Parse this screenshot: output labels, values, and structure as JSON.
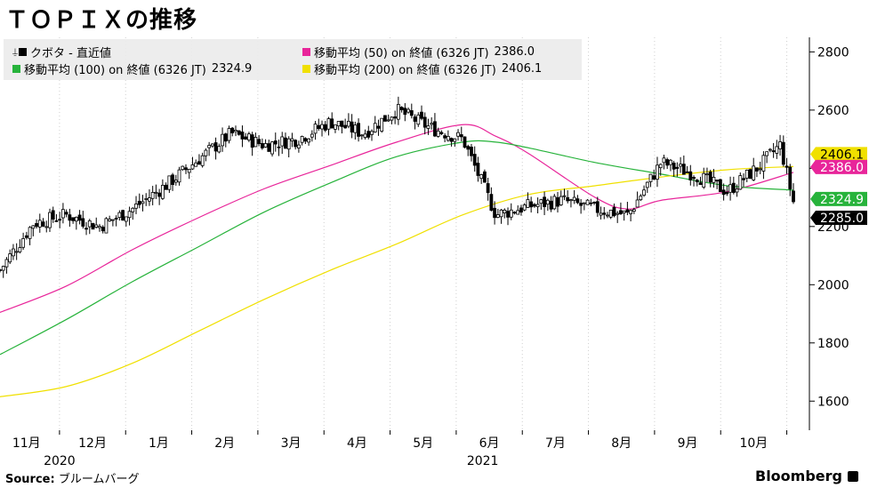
{
  "title": "ＴＯＰＩＸの推移",
  "source_label": "Source:",
  "source_text": "ブルームバーグ",
  "logo": "Bloomberg",
  "legend": {
    "items": [
      {
        "label": "クボタ - 直近値",
        "value": "",
        "color": "#000000"
      },
      {
        "label": "移動平均 (50)  on 終値 (6326 JT)",
        "value": "2386.0",
        "color": "#e8259a"
      },
      {
        "label": "移動平均 (100)  on 終値 (6326 JT)",
        "value": "2324.9",
        "color": "#27b33b"
      },
      {
        "label": "移動平均 (200)  on 終値 (6326 JT)",
        "value": "2406.1",
        "color": "#f0e000"
      }
    ]
  },
  "chart_data": {
    "type": "line",
    "title": "ＴＯＰＩＸの推移",
    "ylim": [
      1500,
      2850
    ],
    "y_ticks": [
      1600,
      1800,
      2000,
      2200,
      2400,
      2600,
      2800
    ],
    "y_tick_labels": [
      "1600",
      "1800",
      "2000",
      "2200",
      "2400",
      "2600",
      "2800"
    ],
    "x_range": [
      0,
      12
    ],
    "month_ticks": [
      {
        "x": 0.4,
        "label": "11月"
      },
      {
        "x": 1.4,
        "label": "12月"
      },
      {
        "x": 2.4,
        "label": "1月"
      },
      {
        "x": 3.4,
        "label": "2月"
      },
      {
        "x": 4.4,
        "label": "3月"
      },
      {
        "x": 5.4,
        "label": "4月"
      },
      {
        "x": 6.4,
        "label": "5月"
      },
      {
        "x": 7.4,
        "label": "6月"
      },
      {
        "x": 8.4,
        "label": "7月"
      },
      {
        "x": 9.4,
        "label": "8月"
      },
      {
        "x": 10.4,
        "label": "9月"
      },
      {
        "x": 11.4,
        "label": "10月"
      }
    ],
    "year_labels": [
      {
        "x": 0.9,
        "label": "2020"
      },
      {
        "x": 7.3,
        "label": "2021"
      }
    ],
    "grid": "vertical-dotted",
    "legend_position": "top-left",
    "series": [
      {
        "name": "クボタ - 直近値",
        "kind": "candlestick",
        "color": "#000000",
        "x": [
          0,
          0.5,
          1,
          1.5,
          2,
          2.5,
          3,
          3.5,
          4,
          4.5,
          5,
          5.5,
          6,
          6.5,
          7,
          7.5,
          8,
          8.5,
          9,
          9.5,
          10,
          10.5,
          11,
          11.5,
          11.8,
          12
        ],
        "y": [
          2050,
          2210,
          2240,
          2200,
          2260,
          2340,
          2430,
          2520,
          2480,
          2500,
          2560,
          2520,
          2600,
          2540,
          2500,
          2240,
          2270,
          2290,
          2260,
          2240,
          2420,
          2380,
          2320,
          2410,
          2480,
          2285
        ]
      },
      {
        "name": "移動平均 (50)",
        "color": "#e8259a",
        "x": [
          0,
          1,
          2,
          3,
          4,
          5,
          6,
          7,
          7.5,
          8,
          9,
          9.5,
          10,
          11,
          12
        ],
        "y": [
          1905,
          1995,
          2120,
          2230,
          2330,
          2410,
          2490,
          2550,
          2510,
          2450,
          2300,
          2260,
          2290,
          2320,
          2386
        ]
      },
      {
        "name": "移動平均 (100)",
        "color": "#27b33b",
        "x": [
          0,
          1,
          2,
          3,
          4,
          5,
          6,
          7,
          7.5,
          8,
          9,
          10,
          11,
          12
        ],
        "y": [
          1760,
          1880,
          2010,
          2130,
          2250,
          2350,
          2440,
          2490,
          2490,
          2470,
          2420,
          2380,
          2340,
          2325
        ]
      },
      {
        "name": "移動平均 (200)",
        "color": "#f0e000",
        "x": [
          0,
          1,
          2,
          3,
          4,
          5,
          6,
          7,
          8,
          9,
          10,
          11,
          12
        ],
        "y": [
          1615,
          1650,
          1730,
          1840,
          1950,
          2050,
          2140,
          2240,
          2310,
          2340,
          2370,
          2395,
          2406
        ]
      }
    ],
    "value_tags": [
      {
        "value": 2406.1,
        "label": "2406.1",
        "color": "#f0e000",
        "text_color": "#000000"
      },
      {
        "value": 2386.0,
        "label": "2386.0",
        "color": "#e8259a",
        "text_color": "#ffffff"
      },
      {
        "value": 2324.9,
        "label": "2324.9",
        "color": "#27b33b",
        "text_color": "#ffffff"
      },
      {
        "value": 2285.0,
        "label": "2285.0",
        "color": "#000000",
        "text_color": "#ffffff"
      }
    ]
  }
}
